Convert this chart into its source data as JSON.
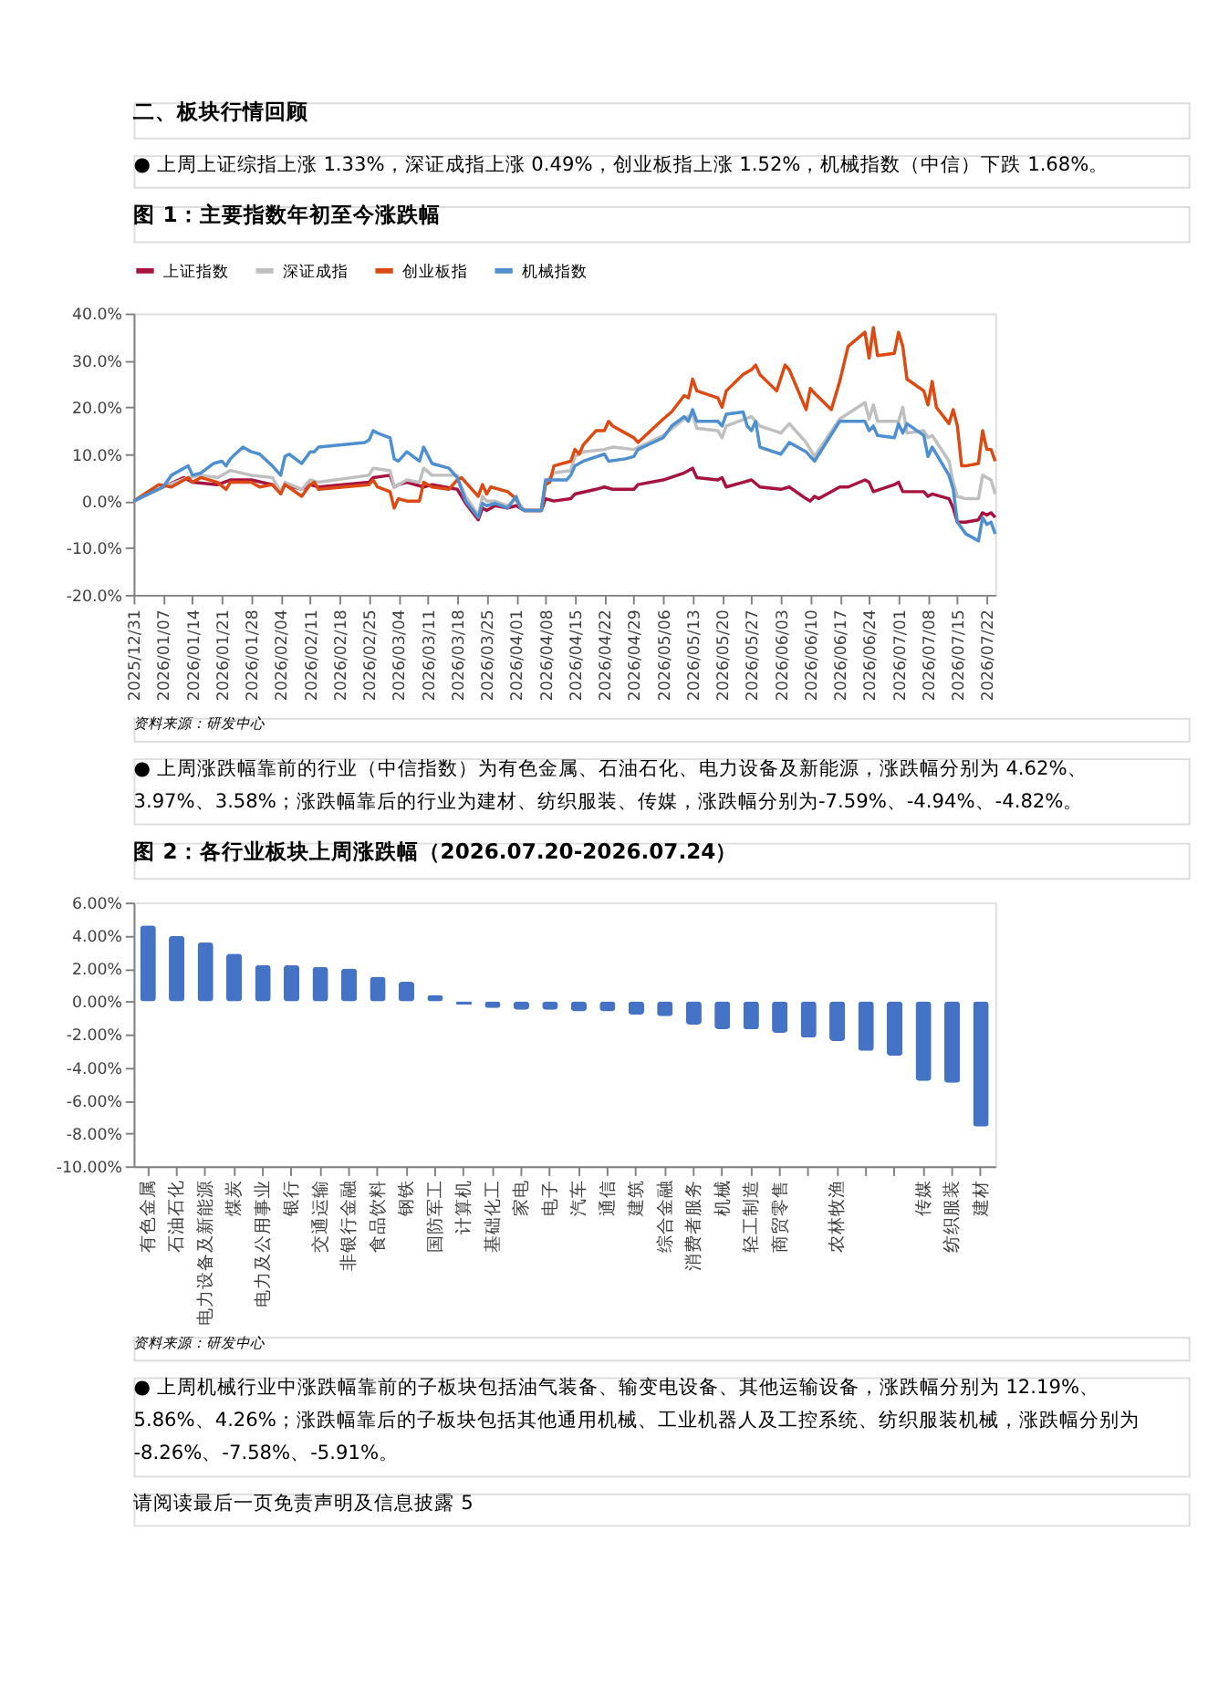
{
  "chart_data": [
    {
      "type": "line",
      "title": "图 1：主要指数年初至今涨跌幅",
      "annotations": [
        "二、板块行情回顾",
        "●  上周上证综指上涨 1.33%，深证成指上涨 0.49%，创业板指上涨 1.52%，机械指数（中信）下跌 1.68%。",
        "资料来源：研发中心",
        "●  上周涨跌幅靠前的行业（中信指数）为有色金属、石油石化、电力设备及新能源，涨跌幅分别为 4.62%、3.97%、3.58%；涨跌幅靠后的行业为建材、纺织服装、传媒，涨跌幅分别为-7.59%、-4.94%、-4.82%。"
      ],
      "legend": "top",
      "grid": false,
      "marker": "none",
      "line_style": "solid",
      "xlim": [
        "2025-12-31",
        "2026-07-24"
      ],
      "xticks": [
        {
          "value": "2025-12-31",
          "label": "2025/12/31"
        },
        {
          "value": "2026-01-07",
          "label": "2026/01/07"
        },
        {
          "value": "2026-01-14",
          "label": "2026/01/14"
        },
        {
          "value": "2026-01-21",
          "label": "2026/01/21"
        },
        {
          "value": "2026-01-28",
          "label": "2026/01/28"
        },
        {
          "value": "2026-02-04",
          "label": "2026/02/04"
        },
        {
          "value": "2026-02-11",
          "label": "2026/02/11"
        },
        {
          "value": "2026-02-18",
          "label": "2026/02/18"
        },
        {
          "value": "2026-02-25",
          "label": "2026/02/25"
        },
        {
          "value": "2026-03-04",
          "label": "2026/03/04"
        },
        {
          "value": "2026-03-11",
          "label": "2026/03/11"
        },
        {
          "value": "2026-03-18",
          "label": "2026/03/18"
        },
        {
          "value": "2026-03-25",
          "label": "2026/03/25"
        },
        {
          "value": "2026-04-01",
          "label": "2026/04/01"
        },
        {
          "value": "2026-04-08",
          "label": "2026/04/08"
        },
        {
          "value": "2026-04-15",
          "label": "2026/04/15"
        },
        {
          "value": "2026-04-22",
          "label": "2026/04/22"
        },
        {
          "value": "2026-04-29",
          "label": "2026/04/29"
        },
        {
          "value": "2026-05-06",
          "label": "2026/05/06"
        },
        {
          "value": "2026-05-13",
          "label": "2026/05/13"
        },
        {
          "value": "2026-05-20",
          "label": "2026/05/20"
        },
        {
          "value": "2026-05-27",
          "label": "2026/05/27"
        },
        {
          "value": "2026-06-03",
          "label": "2026/06/03"
        },
        {
          "value": "2026-06-10",
          "label": "2026/06/10"
        },
        {
          "value": "2026-06-17",
          "label": "2026/06/17"
        },
        {
          "value": "2026-06-24",
          "label": "2026/06/24"
        },
        {
          "value": "2026-07-01",
          "label": "2026/07/01"
        },
        {
          "value": "2026-07-08",
          "label": "2026/07/08"
        },
        {
          "value": "2026-07-15",
          "label": "2026/07/15"
        },
        {
          "value": "2026-07-22",
          "label": "2026/07/22"
        }
      ],
      "ylim": [
        -20,
        40
      ],
      "yticks": [
        {
          "value": 40,
          "label": "40.0%"
        },
        {
          "value": 30,
          "label": "30.0%"
        },
        {
          "value": 20,
          "label": "20.0%"
        },
        {
          "value": 10,
          "label": "10.0%"
        },
        {
          "value": 0,
          "label": "0.0%"
        },
        {
          "value": -10,
          "label": "-10.0%"
        },
        {
          "value": -20,
          "label": "-20.0%"
        }
      ],
      "series": [
        {
          "name": "上证指数",
          "color": "#a8123e",
          "x": [
            "2025-12-31",
            "2026-01-07",
            "2026-01-12",
            "2026-01-14",
            "2026-01-20",
            "2026-01-23",
            "2026-01-28",
            "2026-02-02",
            "2026-02-04",
            "2026-02-05",
            "2026-02-09",
            "2026-02-11",
            "2026-02-13",
            "2026-02-25",
            "2026-02-26",
            "2026-03-02",
            "2026-03-03",
            "2026-03-04",
            "2026-03-06",
            "2026-03-10",
            "2026-03-12",
            "2026-03-18",
            "2026-03-20",
            "2026-03-23",
            "2026-03-24",
            "2026-03-25",
            "2026-03-27",
            "2026-03-30",
            "2026-04-01",
            "2026-04-03",
            "2026-04-07",
            "2026-04-08",
            "2026-04-10",
            "2026-04-14",
            "2026-04-15",
            "2026-04-20",
            "2026-04-22",
            "2026-04-24",
            "2026-04-29",
            "2026-04-30",
            "2026-05-06",
            "2026-05-11",
            "2026-05-13",
            "2026-05-14",
            "2026-05-19",
            "2026-05-20",
            "2026-05-21",
            "2026-05-25",
            "2026-05-27",
            "2026-05-29",
            "2026-06-03",
            "2026-06-05",
            "2026-06-09",
            "2026-06-10",
            "2026-06-11",
            "2026-06-12",
            "2026-06-17",
            "2026-06-19",
            "2026-06-23",
            "2026-06-24",
            "2026-06-25",
            "2026-06-30",
            "2026-07-01",
            "2026-07-02",
            "2026-07-07",
            "2026-07-08",
            "2026-07-09",
            "2026-07-13",
            "2026-07-14",
            "2026-07-15",
            "2026-07-17",
            "2026-07-20",
            "2026-07-21",
            "2026-07-22",
            "2026-07-23",
            "2026-07-24"
          ],
          "values": [
            0,
            3,
            5,
            4,
            3.5,
            4.5,
            4.5,
            3.5,
            2,
            3.5,
            2.5,
            3.5,
            3,
            4,
            5,
            5.5,
            3,
            3.5,
            4,
            3,
            3.5,
            2.5,
            -0.5,
            -4,
            -1.5,
            -2,
            -1,
            -1.5,
            -1,
            -2,
            -2,
            0.5,
            0,
            0.5,
            1.5,
            2.5,
            3,
            2.5,
            2.5,
            3.5,
            4.5,
            6,
            7,
            5,
            4.5,
            5,
            3,
            4,
            4.5,
            3,
            2.5,
            3,
            0.5,
            0,
            1,
            0.5,
            3,
            3,
            4.5,
            4,
            2,
            3.5,
            4,
            2,
            2,
            1,
            1.5,
            0.5,
            -1.5,
            -4.5,
            -4.5,
            -4,
            -2.5,
            -3,
            -2.5,
            -3.5
          ]
        },
        {
          "name": "深证成指",
          "color": "#bfbfbf",
          "x": [
            "2025-12-31",
            "2026-01-07",
            "2026-01-13",
            "2026-01-16",
            "2026-01-20",
            "2026-01-23",
            "2026-01-28",
            "2026-02-02",
            "2026-02-04",
            "2026-02-05",
            "2026-02-09",
            "2026-02-11",
            "2026-02-13",
            "2026-02-25",
            "2026-02-26",
            "2026-03-02",
            "2026-03-03",
            "2026-03-04",
            "2026-03-06",
            "2026-03-09",
            "2026-03-10",
            "2026-03-12",
            "2026-03-18",
            "2026-03-19",
            "2026-03-20",
            "2026-03-23",
            "2026-03-24",
            "2026-03-25",
            "2026-03-27",
            "2026-03-30",
            "2026-04-01",
            "2026-04-03",
            "2026-04-07",
            "2026-04-08",
            "2026-04-10",
            "2026-04-14",
            "2026-04-15",
            "2026-04-17",
            "2026-04-22",
            "2026-04-24",
            "2026-04-29",
            "2026-05-06",
            "2026-05-11",
            "2026-05-13",
            "2026-05-14",
            "2026-05-19",
            "2026-05-20",
            "2026-05-21",
            "2026-05-27",
            "2026-05-29",
            "2026-06-03",
            "2026-06-05",
            "2026-06-09",
            "2026-06-11",
            "2026-06-17",
            "2026-06-23",
            "2026-06-24",
            "2026-06-25",
            "2026-06-26",
            "2026-07-01",
            "2026-07-02",
            "2026-07-03",
            "2026-07-07",
            "2026-07-08",
            "2026-07-09",
            "2026-07-13",
            "2026-07-14",
            "2026-07-15",
            "2026-07-17",
            "2026-07-20",
            "2026-07-21",
            "2026-07-22",
            "2026-07-23",
            "2026-07-24"
          ],
          "values": [
            0,
            3,
            5,
            5.5,
            5,
            6.5,
            5.5,
            5,
            2,
            4,
            2.5,
            4.5,
            4,
            5.5,
            7,
            6.5,
            3,
            3.5,
            4.5,
            4,
            7,
            5.5,
            5.5,
            3,
            1,
            -3,
            1,
            0,
            0,
            -1,
            0.5,
            -2,
            -2,
            4,
            6,
            6.5,
            9.5,
            10.5,
            11,
            11.5,
            11,
            14,
            17.5,
            18.5,
            15.5,
            15,
            13.5,
            16,
            18,
            16,
            14.5,
            16.5,
            12.5,
            9.5,
            17.5,
            21,
            17.5,
            20.5,
            17,
            17,
            20,
            14.5,
            15,
            13.5,
            14,
            8.5,
            4,
            1,
            0.5,
            0.5,
            5.5,
            5,
            4.5,
            1.5
          ]
        },
        {
          "name": "创业板指",
          "color": "#dc4a12",
          "x": [
            "2025-12-31",
            "2026-01-06",
            "2026-01-09",
            "2026-01-13",
            "2026-01-14",
            "2026-01-16",
            "2026-01-20",
            "2026-01-22",
            "2026-01-23",
            "2026-01-28",
            "2026-01-30",
            "2026-02-02",
            "2026-02-04",
            "2026-02-05",
            "2026-02-09",
            "2026-02-11",
            "2026-02-12",
            "2026-02-13",
            "2026-02-25",
            "2026-02-26",
            "2026-02-27",
            "2026-03-02",
            "2026-03-03",
            "2026-03-04",
            "2026-03-06",
            "2026-03-09",
            "2026-03-10",
            "2026-03-12",
            "2026-03-16",
            "2026-03-18",
            "2026-03-19",
            "2026-03-20",
            "2026-03-23",
            "2026-03-24",
            "2026-03-25",
            "2026-03-26",
            "2026-03-30",
            "2026-04-01",
            "2026-04-02",
            "2026-04-03",
            "2026-04-07",
            "2026-04-08",
            "2026-04-09",
            "2026-04-10",
            "2026-04-14",
            "2026-04-15",
            "2026-04-16",
            "2026-04-17",
            "2026-04-20",
            "2026-04-22",
            "2026-04-23",
            "2026-04-24",
            "2026-04-27",
            "2026-04-29",
            "2026-04-30",
            "2026-05-06",
            "2026-05-08",
            "2026-05-11",
            "2026-05-12",
            "2026-05-13",
            "2026-05-14",
            "2026-05-19",
            "2026-05-20",
            "2026-05-21",
            "2026-05-25",
            "2026-05-27",
            "2026-05-28",
            "2026-05-29",
            "2026-06-02",
            "2026-06-04",
            "2026-06-05",
            "2026-06-09",
            "2026-06-10",
            "2026-06-11",
            "2026-06-15",
            "2026-06-17",
            "2026-06-19",
            "2026-06-23",
            "2026-06-24",
            "2026-06-25",
            "2026-06-26",
            "2026-06-30",
            "2026-07-01",
            "2026-07-02",
            "2026-07-03",
            "2026-07-07",
            "2026-07-08",
            "2026-07-09",
            "2026-07-10",
            "2026-07-13",
            "2026-07-14",
            "2026-07-15",
            "2026-07-16",
            "2026-07-17",
            "2026-07-20",
            "2026-07-21",
            "2026-07-22",
            "2026-07-23",
            "2026-07-24"
          ],
          "values": [
            0,
            3.5,
            3,
            5,
            4,
            5,
            4,
            2.5,
            4,
            4,
            3,
            3.5,
            1.5,
            3.5,
            1,
            3.5,
            4,
            2.5,
            3.5,
            4.5,
            3,
            2,
            -1.5,
            0.5,
            0,
            0,
            4,
            3,
            2.5,
            4.5,
            5,
            4,
            1,
            3.5,
            1.5,
            3,
            2,
            0.5,
            -1.5,
            -2,
            -2,
            3.5,
            4,
            7.5,
            8.5,
            11,
            10,
            12,
            15,
            15,
            17,
            16,
            14.5,
            13.5,
            12.5,
            17.5,
            19,
            22.5,
            22,
            26,
            23.5,
            22,
            20,
            23.5,
            27,
            28,
            29,
            27,
            23.5,
            29,
            28,
            19.5,
            24,
            23,
            19.5,
            25.5,
            33,
            36,
            30.5,
            37,
            31,
            31.5,
            36,
            33,
            26,
            23.5,
            20.5,
            25.5,
            20,
            16.5,
            19.5,
            16,
            7.5,
            7.5,
            8,
            15,
            11,
            11,
            8.5
          ]
        },
        {
          "name": "机械指数",
          "color": "#4e8fcf",
          "x": [
            "2025-12-31",
            "2026-01-07",
            "2026-01-09",
            "2026-01-13",
            "2026-01-14",
            "2026-01-16",
            "2026-01-19",
            "2026-01-21",
            "2026-01-22",
            "2026-01-23",
            "2026-01-26",
            "2026-01-28",
            "2026-01-30",
            "2026-02-02",
            "2026-02-04",
            "2026-02-05",
            "2026-02-06",
            "2026-02-09",
            "2026-02-11",
            "2026-02-12",
            "2026-02-13",
            "2026-02-24",
            "2026-02-25",
            "2026-02-26",
            "2026-02-27",
            "2026-03-02",
            "2026-03-03",
            "2026-03-04",
            "2026-03-06",
            "2026-03-09",
            "2026-03-10",
            "2026-03-12",
            "2026-03-16",
            "2026-03-18",
            "2026-03-20",
            "2026-03-23",
            "2026-03-24",
            "2026-03-25",
            "2026-03-27",
            "2026-03-30",
            "2026-04-01",
            "2026-04-02",
            "2026-04-03",
            "2026-04-07",
            "2026-04-08",
            "2026-04-13",
            "2026-04-14",
            "2026-04-15",
            "2026-04-17",
            "2026-04-22",
            "2026-04-23",
            "2026-04-27",
            "2026-04-29",
            "2026-04-30",
            "2026-05-06",
            "2026-05-08",
            "2026-05-11",
            "2026-05-12",
            "2026-05-13",
            "2026-05-14",
            "2026-05-19",
            "2026-05-20",
            "2026-05-21",
            "2026-05-25",
            "2026-05-26",
            "2026-05-27",
            "2026-05-28",
            "2026-05-29",
            "2026-06-03",
            "2026-06-05",
            "2026-06-09",
            "2026-06-10",
            "2026-06-11",
            "2026-06-17",
            "2026-06-23",
            "2026-06-24",
            "2026-06-25",
            "2026-06-26",
            "2026-06-30",
            "2026-07-01",
            "2026-07-02",
            "2026-07-03",
            "2026-07-07",
            "2026-07-08",
            "2026-07-09",
            "2026-07-13",
            "2026-07-14",
            "2026-07-15",
            "2026-07-17",
            "2026-07-20",
            "2026-07-21",
            "2026-07-22",
            "2026-07-23",
            "2026-07-24"
          ],
          "values": [
            0,
            3,
            5.5,
            7.5,
            5.5,
            6,
            8,
            8.5,
            7.5,
            9,
            11.5,
            10.5,
            10,
            7.5,
            5.5,
            9.5,
            10,
            8,
            10.5,
            10.5,
            11.5,
            12.5,
            13,
            15,
            14.5,
            13.5,
            9,
            8.5,
            10.5,
            8.5,
            11.5,
            8,
            7,
            5,
            0,
            -3.5,
            -0.5,
            -1,
            -0.5,
            -1.5,
            1,
            -1.5,
            -2,
            -2,
            4.5,
            4.5,
            5.5,
            7.5,
            8.5,
            10,
            8.5,
            9,
            9.5,
            11,
            13.5,
            16,
            18,
            17,
            19.5,
            17,
            17,
            16,
            18.5,
            19,
            16,
            15,
            17,
            11.5,
            10,
            12.5,
            10.5,
            9.5,
            8.5,
            17,
            17,
            15,
            16,
            14,
            13.5,
            16.5,
            14.5,
            16.5,
            14,
            9.5,
            11.5,
            5.5,
            2.5,
            -4.5,
            -7,
            -8.5,
            -3.5,
            -5,
            -4.5,
            -7
          ]
        }
      ]
    },
    {
      "type": "bar",
      "title": "图 2：各行业板块上周涨跌幅（2026.07.20-2026.07.24）",
      "annotations": [
        "资料来源：研发中心",
        "●  上周机械行业中涨跌幅靠前的子板块包括油气装备、输变电设备、其他运输设备，涨跌幅分别为 12.19%、5.86%、4.26%；涨跌幅靠后的子板块包括其他通用机械、工业机器人及工控系统、纺织服装机械，涨跌幅分别为-8.26%、-7.58%、-5.91%。",
        "请阅读最后一页免责声明及信息披露  5"
      ],
      "categories": [
        "有色金属",
        "石油石化",
        "电力设备及新能源",
        "煤炭",
        "电力及公用事业",
        "银行",
        "交通运输",
        "非银行金融",
        "食品饮料",
        "钢铁",
        "国防军工",
        "计算机",
        "基础化工",
        "家电",
        "电子",
        "汽车",
        "通信",
        "建筑",
        "综合金融",
        "消费者服务",
        "机械",
        "轻工制造",
        "商贸零售",
        null,
        "农林牧渔",
        null,
        null,
        "传媒",
        "纺织服装",
        "建材"
      ],
      "values": [
        4.62,
        3.97,
        3.58,
        2.9,
        2.2,
        2.2,
        2.1,
        2.0,
        1.5,
        1.2,
        0.4,
        -0.2,
        -0.4,
        -0.5,
        -0.5,
        -0.6,
        -0.6,
        -0.8,
        -0.9,
        -1.4,
        -1.68,
        -1.7,
        -1.9,
        -2.2,
        -2.4,
        -3.0,
        -3.3,
        -4.82,
        -4.94,
        -7.59
      ],
      "color": "#4472c4",
      "grid": false,
      "ylim": [
        -10,
        6
      ],
      "yticks": [
        {
          "value": 6,
          "label": "6.00%"
        },
        {
          "value": 4,
          "label": "4.00%"
        },
        {
          "value": 2,
          "label": "2.00%"
        },
        {
          "value": 0,
          "label": "0.00%"
        },
        {
          "value": -2,
          "label": "-2.00%"
        },
        {
          "value": -4,
          "label": "-4.00%"
        },
        {
          "value": -6,
          "label": "-6.00%"
        },
        {
          "value": -8,
          "label": "-8.00%"
        },
        {
          "value": -10,
          "label": "-10.00%"
        }
      ]
    }
  ]
}
